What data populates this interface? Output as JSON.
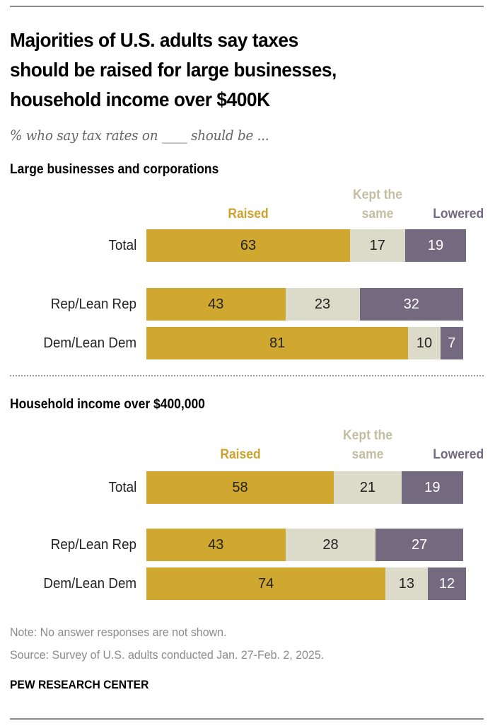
{
  "chart_data": [
    {
      "type": "bar",
      "orientation": "horizontal",
      "stacked": true,
      "title": "Large businesses and corporations",
      "categories": [
        "Total",
        "Rep/Lean Rep",
        "Dem/Lean Dem"
      ],
      "series": [
        {
          "name": "Raised",
          "values": [
            63,
            43,
            81
          ]
        },
        {
          "name": "Kept the same",
          "values": [
            17,
            23,
            10
          ]
        },
        {
          "name": "Lowered",
          "values": [
            19,
            32,
            7
          ]
        }
      ],
      "xlim": [
        0,
        100
      ],
      "grid": false,
      "legend": "top"
    },
    {
      "type": "bar",
      "orientation": "horizontal",
      "stacked": true,
      "title": "Household income over $400,000",
      "categories": [
        "Total",
        "Rep/Lean Rep",
        "Dem/Lean Dem"
      ],
      "series": [
        {
          "name": "Raised",
          "values": [
            58,
            43,
            74
          ]
        },
        {
          "name": "Kept the same",
          "values": [
            21,
            28,
            13
          ]
        },
        {
          "name": "Lowered",
          "values": [
            19,
            27,
            12
          ]
        }
      ],
      "xlim": [
        0,
        100
      ],
      "grid": false,
      "legend": "top"
    }
  ],
  "header": {
    "title_lines": [
      "Majorities of U.S. adults say taxes",
      "should be raised for large businesses,",
      "household income over $400K"
    ],
    "subtitle": "% who say tax rates on ____ should be ..."
  },
  "legend": {
    "raised": "Raised",
    "kept_line1": "Kept the",
    "kept_line2": "same",
    "lowered": "Lowered"
  },
  "colors": {
    "raised": "#D1A82F",
    "kept": "#DCDBC9",
    "lowered": "#736A80",
    "raised_label": "#CDA22C",
    "kept_label": "#C2BEA0",
    "lowered_label": "#736A80",
    "lowered_text": "#ffffff",
    "bar_text": "#222222"
  },
  "footer": {
    "note": "Note: No answer responses are not shown.",
    "source": "Source: Survey of U.S. adults conducted Jan. 27-Feb. 2, 2025.",
    "brand": "PEW RESEARCH CENTER"
  }
}
